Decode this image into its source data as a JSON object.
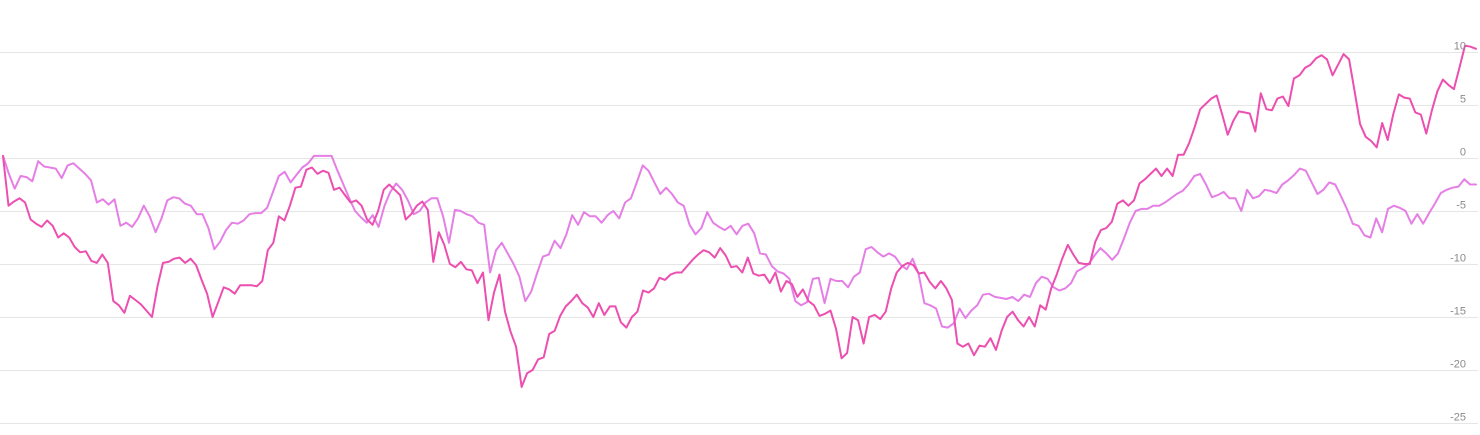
{
  "chart_data": {
    "type": "line",
    "title": "",
    "xlabel": "",
    "ylabel": "",
    "ylim": [
      -25,
      10
    ],
    "yticks": [
      10,
      5,
      0,
      -5,
      -10,
      -15,
      -20,
      -25
    ],
    "y_axis_position": "right",
    "grid": true,
    "legend": "none",
    "series": [
      {
        "color": "#ec4fb0",
        "values": [
          0.2,
          -4.5,
          -4.1,
          -3.8,
          -4.2,
          -5.8,
          -6.2,
          -6.5,
          -5.9,
          -6.4,
          -7.5,
          -7.1,
          -7.5,
          -8.4,
          -8.9,
          -8.8,
          -9.7,
          -9.9,
          -9.1,
          -9.9,
          -13.5,
          -13.9,
          -14.6,
          -13.0,
          -13.4,
          -13.8,
          -14.4,
          -15.0,
          -12.1,
          -9.9,
          -9.8,
          -9.5,
          -9.4,
          -9.9,
          -9.5,
          -10.1,
          -11.5,
          -12.8,
          -15.0,
          -13.6,
          -12.2,
          -12.4,
          -12.8,
          -12.0,
          -12.0,
          -12.0,
          -12.1,
          -11.6,
          -8.7,
          -8.0,
          -5.5,
          -5.9,
          -4.5,
          -2.8,
          -2.7,
          -1.1,
          -0.9,
          -1.5,
          -1.2,
          -1.4,
          -3.0,
          -2.8,
          -3.5,
          -4.2,
          -4.0,
          -4.5,
          -5.8,
          -6.3,
          -5.0,
          -3.0,
          -2.5,
          -3.0,
          -3.5,
          -5.8,
          -5.3,
          -4.5,
          -4.1,
          -4.9,
          -9.8,
          -7.0,
          -8.2,
          -10.0,
          -10.3,
          -9.8,
          -10.5,
          -10.6,
          -11.8,
          -10.8,
          -15.3,
          -12.7,
          -11.0,
          -14.5,
          -16.4,
          -17.8,
          -21.6,
          -20.3,
          -20.0,
          -19.0,
          -18.8,
          -16.6,
          -16.3,
          -14.9,
          -14.0,
          -13.5,
          -12.9,
          -13.7,
          -14.1,
          -15.0,
          -13.7,
          -14.8,
          -14.0,
          -14.0,
          -15.5,
          -16.0,
          -15.0,
          -14.5,
          -12.5,
          -12.7,
          -12.3,
          -11.3,
          -11.5,
          -11.0,
          -10.8,
          -10.8,
          -10.2,
          -9.6,
          -9.1,
          -8.7,
          -8.9,
          -9.4,
          -8.5,
          -9.2,
          -10.3,
          -10.2,
          -10.8,
          -9.4,
          -10.9,
          -11.1,
          -11.0,
          -11.8,
          -10.8,
          -12.6,
          -11.6,
          -11.9,
          -13.1,
          -12.4,
          -13.5,
          -13.9,
          -14.9,
          -14.7,
          -14.4,
          -16.1,
          -18.9,
          -18.4,
          -15.0,
          -15.3,
          -17.5,
          -15.0,
          -14.8,
          -15.2,
          -14.5,
          -12.3,
          -10.8,
          -10.2,
          -9.9,
          -10.1,
          -10.9,
          -10.8,
          -11.7,
          -12.3,
          -11.6,
          -12.3,
          -13.4,
          -17.5,
          -17.8,
          -17.5,
          -18.6,
          -17.7,
          -17.8,
          -17.0,
          -18.1,
          -16.3,
          -15.0,
          -14.5,
          -15.3,
          -15.9,
          -15.0,
          -15.9,
          -13.9,
          -14.3,
          -12.3,
          -11.0,
          -9.5,
          -8.2,
          -9.1,
          -9.9,
          -10.0,
          -10.0,
          -7.9,
          -6.8,
          -6.6,
          -6.0,
          -4.3,
          -4.0,
          -4.5,
          -4.0,
          -2.4,
          -2.0,
          -1.5,
          -1.0,
          -1.7,
          -1.0,
          -1.7,
          0.3,
          0.3,
          1.4,
          2.9,
          4.6,
          5.1,
          5.6,
          5.9,
          4.1,
          2.2,
          3.5,
          4.4,
          4.3,
          4.2,
          2.5,
          6.1,
          4.6,
          4.5,
          5.6,
          5.8,
          4.9,
          7.5,
          7.8,
          8.5,
          8.8,
          9.4,
          9.7,
          9.3,
          7.8,
          8.8,
          9.8,
          9.3,
          6.3,
          3.2,
          2.0,
          1.6,
          1.0,
          3.3,
          1.7,
          4.1,
          6.0,
          5.7,
          5.6,
          4.3,
          4.1,
          2.3,
          4.5,
          6.3,
          7.4,
          6.9,
          6.5,
          8.5,
          10.6,
          10.5,
          10.3
        ]
      },
      {
        "color": "#e57fe6",
        "values": [
          0.2,
          -1.5,
          -2.9,
          -1.7,
          -1.8,
          -2.2,
          -0.3,
          -0.8,
          -0.9,
          -1.0,
          -1.9,
          -0.7,
          -0.5,
          -1.0,
          -1.5,
          -2.1,
          -4.2,
          -3.9,
          -4.4,
          -3.9,
          -6.4,
          -6.1,
          -6.5,
          -5.7,
          -4.5,
          -5.5,
          -7.0,
          -5.7,
          -4.0,
          -3.7,
          -3.8,
          -4.3,
          -4.5,
          -5.3,
          -5.3,
          -6.6,
          -8.6,
          -7.9,
          -6.8,
          -6.1,
          -6.2,
          -5.9,
          -5.3,
          -5.2,
          -5.2,
          -4.7,
          -3.2,
          -1.7,
          -1.3,
          -2.3,
          -1.6,
          -0.9,
          -0.5,
          0.2,
          0.2,
          0.2,
          0.2,
          -1.2,
          -2.5,
          -3.8,
          -5.0,
          -5.6,
          -6.1,
          -5.4,
          -6.5,
          -4.5,
          -3.2,
          -2.4,
          -3.0,
          -4.0,
          -5.3,
          -5.0,
          -4.2,
          -3.8,
          -3.8,
          -5.5,
          -8.0,
          -4.9,
          -5.0,
          -5.3,
          -5.5,
          -6.1,
          -6.3,
          -10.8,
          -8.7,
          -8.0,
          -9.0,
          -10.0,
          -11.2,
          -13.5,
          -12.6,
          -10.9,
          -9.3,
          -9.1,
          -7.8,
          -8.5,
          -7.2,
          -5.4,
          -6.3,
          -5.1,
          -5.5,
          -5.5,
          -6.1,
          -5.4,
          -5.0,
          -5.7,
          -4.2,
          -3.8,
          -2.3,
          -0.7,
          -1.2,
          -2.3,
          -3.4,
          -2.8,
          -3.4,
          -4.2,
          -4.5,
          -6.3,
          -7.2,
          -6.6,
          -5.1,
          -6.1,
          -6.5,
          -6.8,
          -6.4,
          -7.2,
          -6.4,
          -6.2,
          -7.1,
          -9.0,
          -9.1,
          -10.2,
          -10.7,
          -10.9,
          -11.4,
          -13.5,
          -13.9,
          -13.6,
          -11.4,
          -11.3,
          -13.7,
          -11.4,
          -11.6,
          -11.6,
          -12.2,
          -11.2,
          -10.8,
          -8.6,
          -8.4,
          -8.9,
          -9.3,
          -9.0,
          -9.3,
          -10.1,
          -10.5,
          -9.5,
          -10.9,
          -13.7,
          -13.9,
          -14.2,
          -15.9,
          -16.0,
          -15.6,
          -14.2,
          -15.1,
          -14.4,
          -13.9,
          -12.9,
          -12.8,
          -13.1,
          -13.2,
          -13.3,
          -13.1,
          -13.5,
          -12.9,
          -13.1,
          -11.8,
          -11.2,
          -11.4,
          -12.2,
          -12.5,
          -12.3,
          -11.8,
          -10.7,
          -10.4,
          -10.0,
          -9.2,
          -8.5,
          -9.0,
          -9.6,
          -9.0,
          -7.6,
          -6.1,
          -5.0,
          -4.8,
          -4.8,
          -4.5,
          -4.5,
          -4.2,
          -3.8,
          -3.4,
          -3.1,
          -2.5,
          -1.7,
          -1.5,
          -2.5,
          -3.7,
          -3.5,
          -3.2,
          -3.8,
          -3.8,
          -5.0,
          -3.0,
          -3.8,
          -3.6,
          -3.0,
          -3.1,
          -3.3,
          -2.5,
          -2.1,
          -1.6,
          -1.0,
          -1.2,
          -2.3,
          -3.4,
          -3.0,
          -2.3,
          -2.5,
          -3.6,
          -4.8,
          -6.2,
          -6.4,
          -7.3,
          -7.5,
          -5.7,
          -7.0,
          -4.8,
          -4.5,
          -4.7,
          -5.0,
          -6.2,
          -5.3,
          -6.2,
          -5.2,
          -4.3,
          -3.3,
          -3.0,
          -2.8,
          -2.7,
          -2.0,
          -2.5,
          -2.5
        ]
      }
    ]
  }
}
